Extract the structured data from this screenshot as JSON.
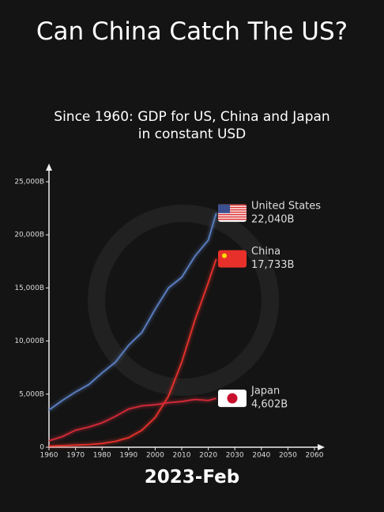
{
  "chart_data": {
    "type": "line",
    "title": "Can China Catch The US?",
    "subtitle": "Since 1960: GDP for US, China and Japan in constant USD",
    "annotation": "2023-Feb",
    "x": [
      1960,
      1965,
      1970,
      1975,
      1980,
      1985,
      1990,
      1995,
      2000,
      2005,
      2010,
      2015,
      2020,
      2023
    ],
    "series": [
      {
        "name": "United States",
        "color": "#5b80c4",
        "values": [
          3500,
          4400,
          5200,
          5900,
          7000,
          8000,
          9600,
          10800,
          13000,
          15000,
          16000,
          18000,
          19500,
          22040
        ],
        "value_labels": [
          null,
          null,
          null,
          null,
          null,
          null,
          null,
          null,
          null,
          null,
          null,
          null,
          null,
          "22,040B"
        ]
      },
      {
        "name": "China",
        "color": "#e8302a",
        "values": [
          100,
          150,
          200,
          250,
          350,
          550,
          900,
          1600,
          2800,
          4800,
          8000,
          12000,
          15500,
          17733
        ],
        "value_labels": [
          null,
          null,
          null,
          null,
          null,
          null,
          null,
          null,
          null,
          null,
          null,
          null,
          null,
          "17,733B"
        ]
      },
      {
        "name": "Japan",
        "color": "#d42a38",
        "values": [
          600,
          1000,
          1600,
          1900,
          2300,
          2900,
          3600,
          3900,
          4000,
          4200,
          4300,
          4500,
          4400,
          4602
        ],
        "value_labels": [
          null,
          null,
          null,
          null,
          null,
          null,
          null,
          null,
          null,
          null,
          null,
          null,
          null,
          "4,602B"
        ]
      }
    ],
    "xlim": [
      1960,
      2060
    ],
    "xticks": [
      1960,
      1970,
      1980,
      1990,
      2000,
      2010,
      2020,
      2030,
      2040,
      2050,
      2060
    ],
    "ylim": [
      0,
      25000
    ],
    "yticks": [
      0,
      {
        "value": 5000,
        "label": "5,000B"
      },
      {
        "value": 10000,
        "label": "10,000B"
      },
      {
        "value": 15000,
        "label": "15,000B"
      },
      {
        "value": 20000,
        "label": "20,000B"
      },
      {
        "value": 25000,
        "label": "25,000B"
      }
    ],
    "grid": false
  }
}
